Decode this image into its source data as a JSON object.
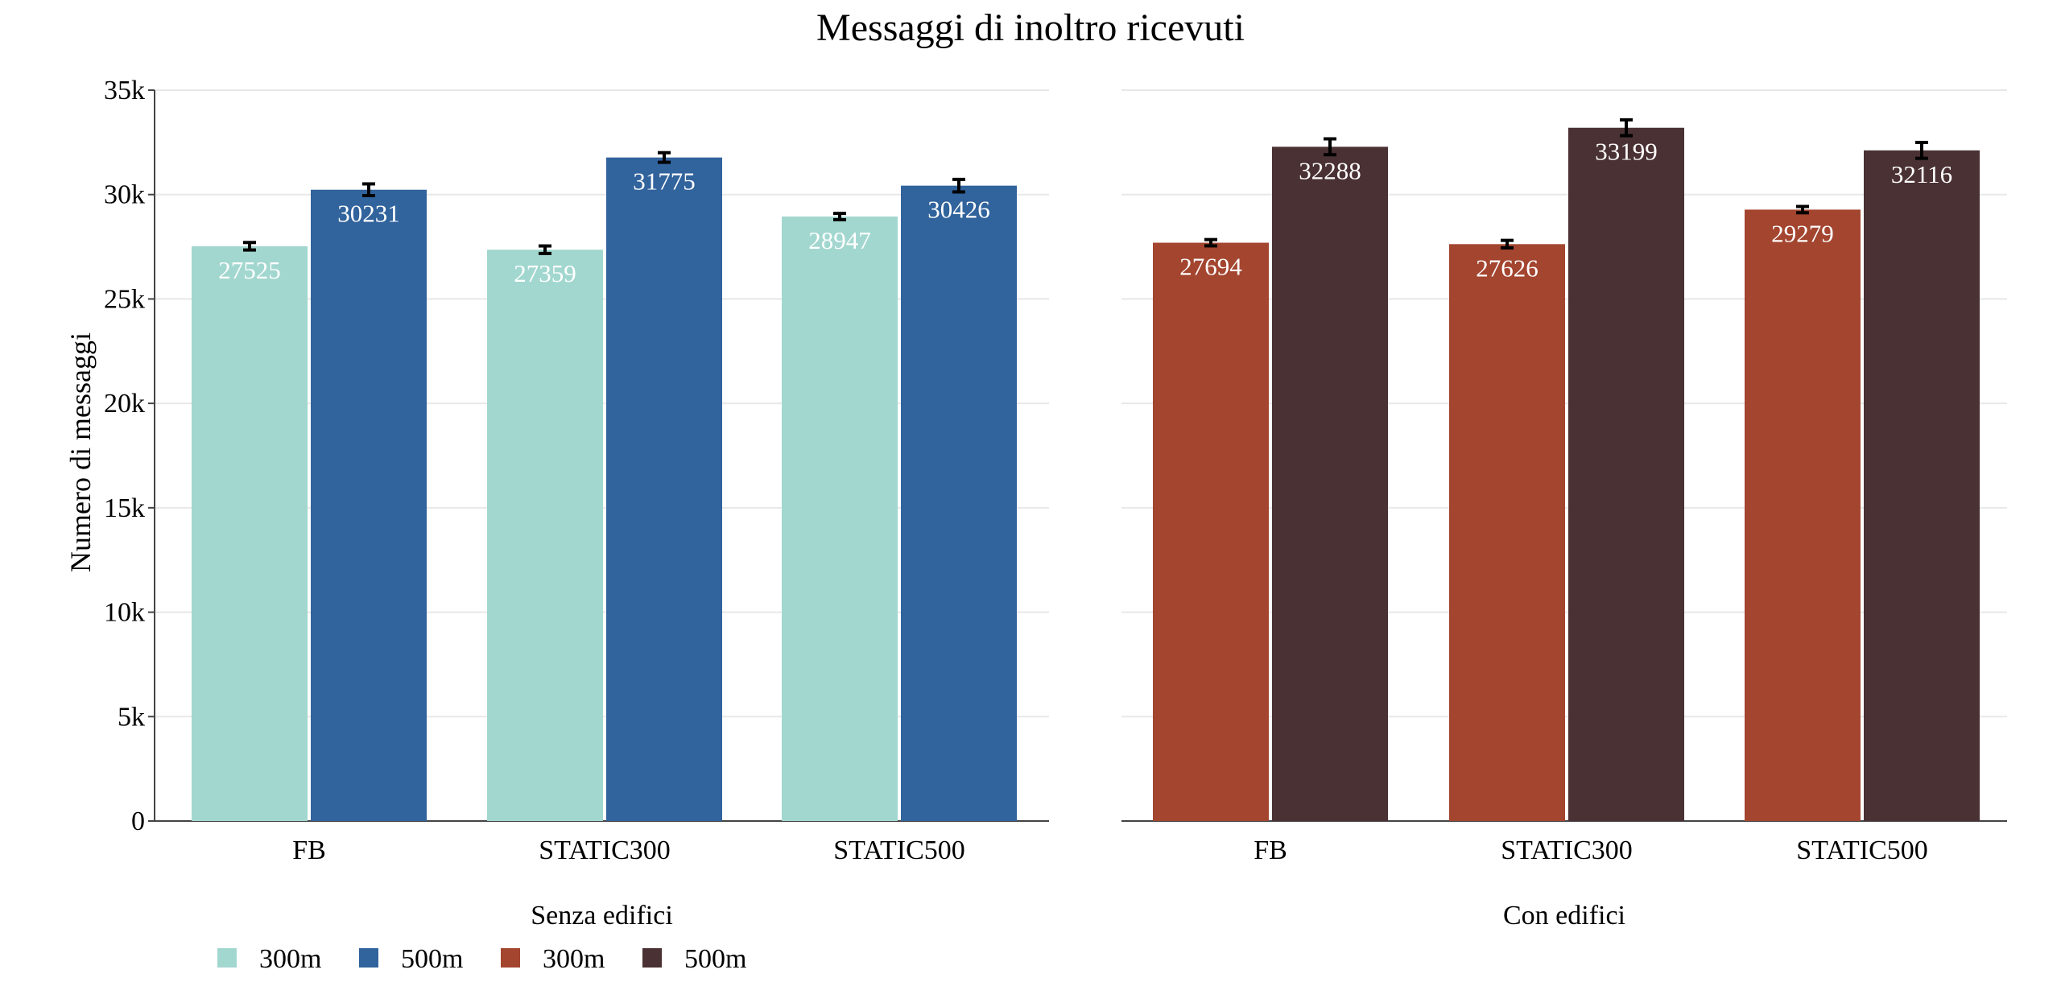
{
  "chart_data": {
    "type": "bar",
    "title": "Messaggi di inoltro ricevuti",
    "ylabel": "Numero di messaggi",
    "ylim": [
      0,
      35000
    ],
    "yticks": [
      {
        "value": 0,
        "label": "0"
      },
      {
        "value": 5000,
        "label": "5k"
      },
      {
        "value": 10000,
        "label": "10k"
      },
      {
        "value": 15000,
        "label": "15k"
      },
      {
        "value": 20000,
        "label": "20k"
      },
      {
        "value": 25000,
        "label": "25k"
      },
      {
        "value": 30000,
        "label": "30k"
      },
      {
        "value": 35000,
        "label": "35k"
      }
    ],
    "grid": true,
    "legend_position": "bottom-left",
    "categories": [
      "FB",
      "STATIC300",
      "STATIC500"
    ],
    "panels": [
      {
        "name": "Senza edifici",
        "series": [
          {
            "name": "300m",
            "color": "#a2d7cf",
            "values": [
              27525,
              27359,
              28947
            ],
            "errors": [
              180,
              180,
              150
            ]
          },
          {
            "name": "500m",
            "color": "#31639c",
            "values": [
              30231,
              31775,
              30426
            ],
            "errors": [
              280,
              230,
              300
            ]
          }
        ]
      },
      {
        "name": "Con edifici",
        "series": [
          {
            "name": "300m",
            "color": "#a3452f",
            "values": [
              27694,
              27626,
              29279
            ],
            "errors": [
              150,
              180,
              150
            ]
          },
          {
            "name": "500m",
            "color": "#4a3133",
            "values": [
              32288,
              33199,
              32116
            ],
            "errors": [
              380,
              380,
              380
            ]
          }
        ]
      }
    ]
  }
}
